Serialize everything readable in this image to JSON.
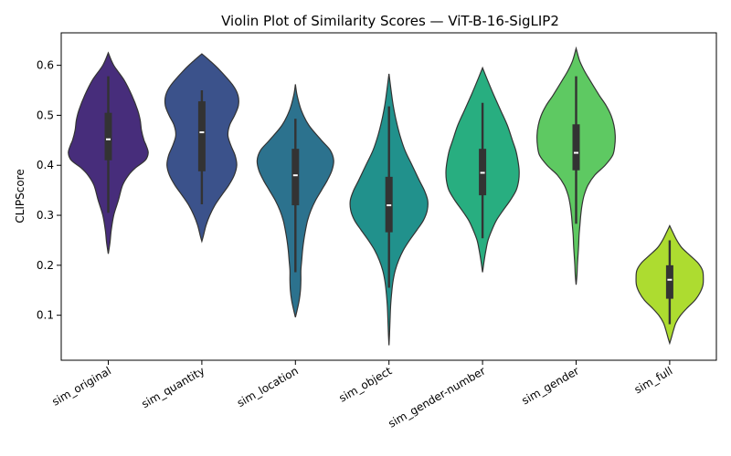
{
  "chart_data": {
    "type": "violin",
    "title": "Violin Plot of Similarity Scores — ViT-B-16-SigLIP2",
    "xlabel": "",
    "ylabel": "CLIPScore",
    "ylim": [
      0.01,
      0.665
    ],
    "yticks": [
      0.1,
      0.2,
      0.3,
      0.4,
      0.5,
      0.6
    ],
    "grid": false,
    "categories": [
      "sim_original",
      "sim_quantity",
      "sim_location",
      "sim_object",
      "sim_gender-number",
      "sim_gender",
      "sim_full"
    ],
    "colors": [
      "#472d7b",
      "#3b528b",
      "#2c728e",
      "#21918c",
      "#28ae80",
      "#5ec962",
      "#addc30"
    ],
    "violins": [
      {
        "name": "sim_original",
        "min": 0.305,
        "q1": 0.41,
        "median": 0.452,
        "q3": 0.505,
        "max": 0.578,
        "y_top": 0.625,
        "y_bottom": 0.223,
        "profile": [
          [
            0.625,
            0.0
          ],
          [
            0.6,
            0.13
          ],
          [
            0.57,
            0.38
          ],
          [
            0.54,
            0.56
          ],
          [
            0.51,
            0.7
          ],
          [
            0.49,
            0.76
          ],
          [
            0.47,
            0.79
          ],
          [
            0.45,
            0.85
          ],
          [
            0.44,
            0.9
          ],
          [
            0.425,
            0.95
          ],
          [
            0.41,
            0.88
          ],
          [
            0.395,
            0.65
          ],
          [
            0.38,
            0.48
          ],
          [
            0.36,
            0.34
          ],
          [
            0.33,
            0.24
          ],
          [
            0.3,
            0.13
          ],
          [
            0.27,
            0.07
          ],
          [
            0.245,
            0.04
          ],
          [
            0.223,
            0.0
          ]
        ]
      },
      {
        "name": "sim_quantity",
        "min": 0.322,
        "q1": 0.388,
        "median": 0.466,
        "q3": 0.528,
        "max": 0.55,
        "y_top": 0.623,
        "y_bottom": 0.248,
        "profile": [
          [
            0.623,
            0.0
          ],
          [
            0.61,
            0.18
          ],
          [
            0.59,
            0.43
          ],
          [
            0.56,
            0.74
          ],
          [
            0.54,
            0.86
          ],
          [
            0.52,
            0.87
          ],
          [
            0.5,
            0.78
          ],
          [
            0.48,
            0.66
          ],
          [
            0.46,
            0.62
          ],
          [
            0.44,
            0.69
          ],
          [
            0.42,
            0.79
          ],
          [
            0.4,
            0.83
          ],
          [
            0.38,
            0.77
          ],
          [
            0.36,
            0.64
          ],
          [
            0.34,
            0.47
          ],
          [
            0.32,
            0.31
          ],
          [
            0.3,
            0.19
          ],
          [
            0.28,
            0.1
          ],
          [
            0.26,
            0.04
          ],
          [
            0.248,
            0.0
          ]
        ]
      },
      {
        "name": "sim_location",
        "min": 0.186,
        "q1": 0.32,
        "median": 0.38,
        "q3": 0.433,
        "max": 0.493,
        "y_top": 0.562,
        "y_bottom": 0.096,
        "profile": [
          [
            0.562,
            0.0
          ],
          [
            0.54,
            0.04
          ],
          [
            0.51,
            0.14
          ],
          [
            0.48,
            0.32
          ],
          [
            0.45,
            0.62
          ],
          [
            0.43,
            0.83
          ],
          [
            0.41,
            0.91
          ],
          [
            0.39,
            0.87
          ],
          [
            0.37,
            0.76
          ],
          [
            0.35,
            0.62
          ],
          [
            0.33,
            0.48
          ],
          [
            0.31,
            0.37
          ],
          [
            0.29,
            0.29
          ],
          [
            0.27,
            0.24
          ],
          [
            0.25,
            0.2
          ],
          [
            0.23,
            0.17
          ],
          [
            0.21,
            0.15
          ],
          [
            0.19,
            0.13
          ],
          [
            0.17,
            0.13
          ],
          [
            0.15,
            0.12
          ],
          [
            0.13,
            0.09
          ],
          [
            0.11,
            0.04
          ],
          [
            0.096,
            0.0
          ]
        ]
      },
      {
        "name": "sim_object",
        "min": 0.155,
        "q1": 0.266,
        "median": 0.32,
        "q3": 0.377,
        "max": 0.518,
        "y_top": 0.583,
        "y_bottom": 0.04,
        "profile": [
          [
            0.583,
            0.0
          ],
          [
            0.55,
            0.05
          ],
          [
            0.52,
            0.1
          ],
          [
            0.49,
            0.17
          ],
          [
            0.46,
            0.26
          ],
          [
            0.43,
            0.38
          ],
          [
            0.4,
            0.55
          ],
          [
            0.37,
            0.72
          ],
          [
            0.35,
            0.84
          ],
          [
            0.33,
            0.92
          ],
          [
            0.31,
            0.91
          ],
          [
            0.29,
            0.82
          ],
          [
            0.27,
            0.66
          ],
          [
            0.25,
            0.49
          ],
          [
            0.23,
            0.34
          ],
          [
            0.21,
            0.23
          ],
          [
            0.19,
            0.15
          ],
          [
            0.17,
            0.1
          ],
          [
            0.15,
            0.07
          ],
          [
            0.12,
            0.04
          ],
          [
            0.09,
            0.025
          ],
          [
            0.06,
            0.012
          ],
          [
            0.04,
            0.0
          ]
        ]
      },
      {
        "name": "sim_gender-number",
        "min": 0.254,
        "q1": 0.34,
        "median": 0.385,
        "q3": 0.433,
        "max": 0.525,
        "y_top": 0.595,
        "y_bottom": 0.186,
        "profile": [
          [
            0.595,
            0.0
          ],
          [
            0.57,
            0.12
          ],
          [
            0.54,
            0.27
          ],
          [
            0.51,
            0.43
          ],
          [
            0.48,
            0.59
          ],
          [
            0.45,
            0.71
          ],
          [
            0.43,
            0.79
          ],
          [
            0.41,
            0.84
          ],
          [
            0.39,
            0.87
          ],
          [
            0.37,
            0.86
          ],
          [
            0.35,
            0.8
          ],
          [
            0.33,
            0.66
          ],
          [
            0.31,
            0.49
          ],
          [
            0.29,
            0.33
          ],
          [
            0.27,
            0.22
          ],
          [
            0.25,
            0.13
          ],
          [
            0.23,
            0.08
          ],
          [
            0.21,
            0.04
          ],
          [
            0.186,
            0.0
          ]
        ]
      },
      {
        "name": "sim_gender",
        "min": 0.283,
        "q1": 0.39,
        "median": 0.425,
        "q3": 0.482,
        "max": 0.578,
        "y_top": 0.634,
        "y_bottom": 0.161,
        "profile": [
          [
            0.634,
            0.0
          ],
          [
            0.61,
            0.08
          ],
          [
            0.59,
            0.19
          ],
          [
            0.57,
            0.33
          ],
          [
            0.54,
            0.55
          ],
          [
            0.52,
            0.71
          ],
          [
            0.5,
            0.83
          ],
          [
            0.48,
            0.9
          ],
          [
            0.46,
            0.93
          ],
          [
            0.44,
            0.92
          ],
          [
            0.42,
            0.87
          ],
          [
            0.4,
            0.69
          ],
          [
            0.38,
            0.44
          ],
          [
            0.36,
            0.28
          ],
          [
            0.34,
            0.19
          ],
          [
            0.32,
            0.14
          ],
          [
            0.3,
            0.11
          ],
          [
            0.28,
            0.09
          ],
          [
            0.26,
            0.07
          ],
          [
            0.24,
            0.06
          ],
          [
            0.22,
            0.045
          ],
          [
            0.2,
            0.03
          ],
          [
            0.18,
            0.02
          ],
          [
            0.161,
            0.0
          ]
        ]
      },
      {
        "name": "sim_full",
        "min": 0.082,
        "q1": 0.133,
        "median": 0.171,
        "q3": 0.2,
        "max": 0.25,
        "y_top": 0.279,
        "y_bottom": 0.044,
        "profile": [
          [
            0.279,
            0.0
          ],
          [
            0.265,
            0.08
          ],
          [
            0.25,
            0.17
          ],
          [
            0.235,
            0.29
          ],
          [
            0.22,
            0.48
          ],
          [
            0.205,
            0.67
          ],
          [
            0.19,
            0.78
          ],
          [
            0.175,
            0.8
          ],
          [
            0.16,
            0.79
          ],
          [
            0.145,
            0.72
          ],
          [
            0.13,
            0.6
          ],
          [
            0.115,
            0.42
          ],
          [
            0.1,
            0.26
          ],
          [
            0.085,
            0.15
          ],
          [
            0.07,
            0.09
          ],
          [
            0.055,
            0.04
          ],
          [
            0.044,
            0.0
          ]
        ]
      }
    ]
  }
}
